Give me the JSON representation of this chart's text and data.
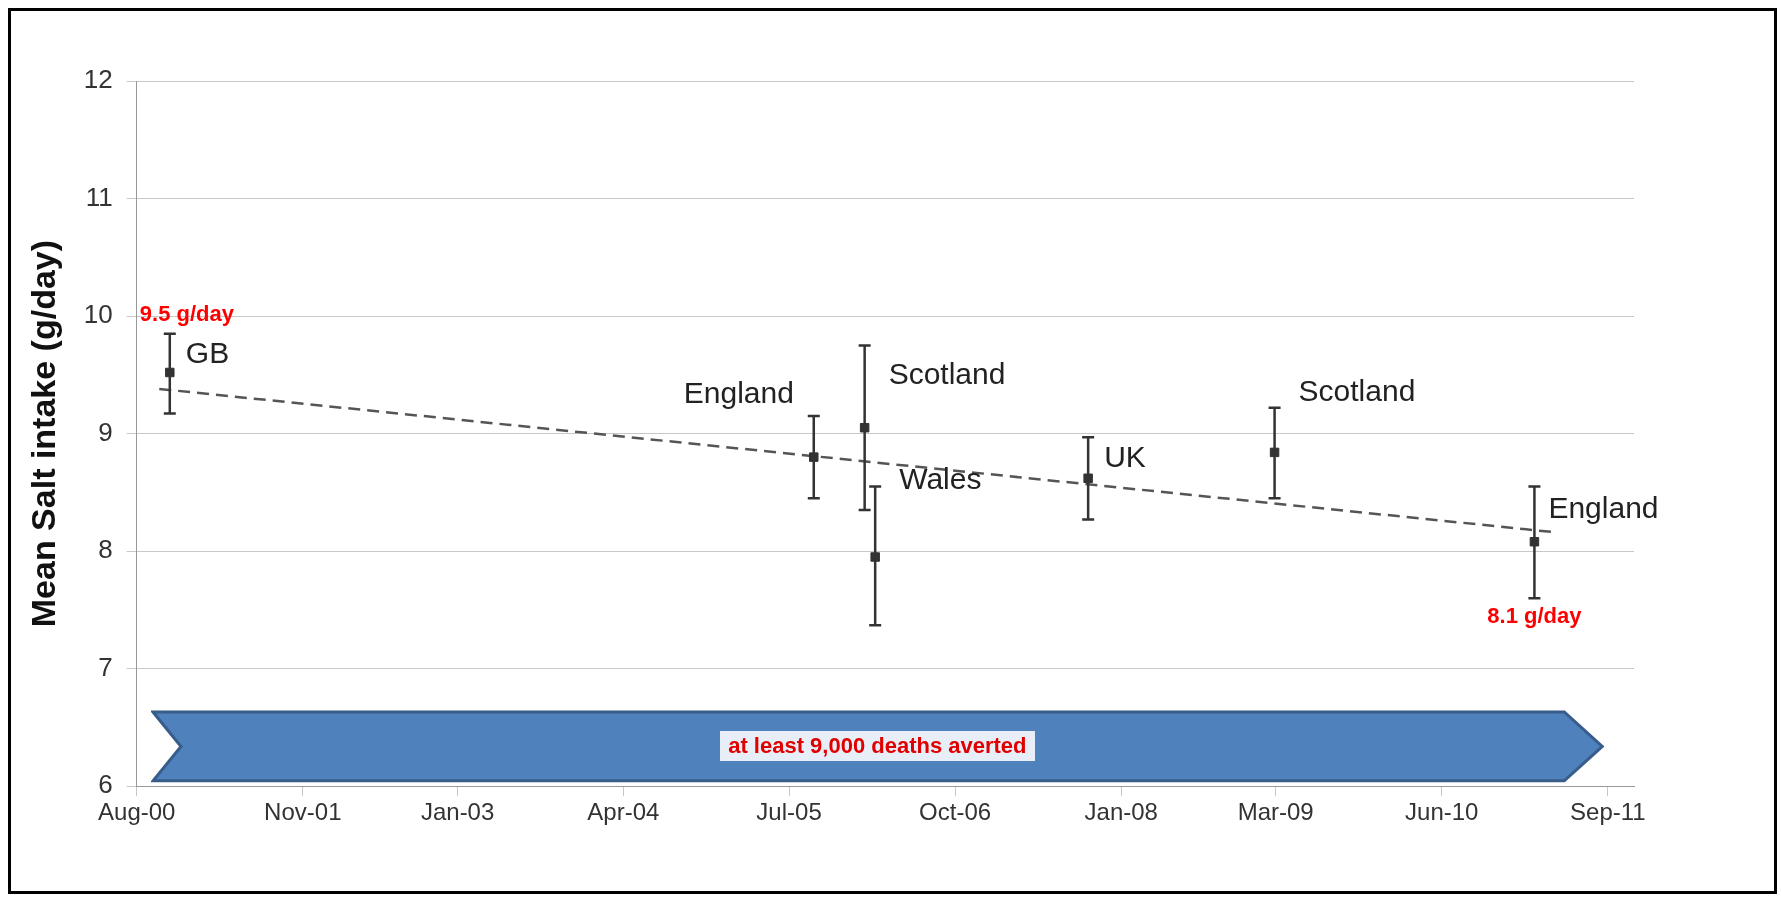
{
  "chart_data": {
    "type": "scatter",
    "ylabel": "Mean Salt intake (g/day)",
    "xlim": [
      "2000-08-01",
      "2011-11-12"
    ],
    "ylim": [
      6,
      12
    ],
    "xticks": [
      {
        "value": "2000-08-01",
        "label": "Aug-00"
      },
      {
        "value": "2001-11-01",
        "label": "Nov-01"
      },
      {
        "value": "2003-01-01",
        "label": "Jan-03"
      },
      {
        "value": "2004-04-01",
        "label": "Apr-04"
      },
      {
        "value": "2005-07-01",
        "label": "Jul-05"
      },
      {
        "value": "2006-10-01",
        "label": "Oct-06"
      },
      {
        "value": "2008-01-01",
        "label": "Jan-08"
      },
      {
        "value": "2009-03-01",
        "label": "Mar-09"
      },
      {
        "value": "2010-06-01",
        "label": "Jun-10"
      },
      {
        "value": "2011-09-01",
        "label": "Sep-11"
      }
    ],
    "yticks": [
      6,
      7,
      8,
      9,
      10,
      11,
      12
    ],
    "grid": "y",
    "legend": false,
    "series": [
      {
        "color": "#333333",
        "marker": "square",
        "x": [
          "2000-10-31",
          "2005-09-07",
          "2006-01-25",
          "2006-02-23",
          "2007-10-02",
          "2009-02-26",
          "2011-02-11"
        ],
        "values": [
          9.52,
          8.8,
          9.05,
          7.95,
          8.62,
          8.84,
          8.08
        ],
        "errors": [
          [
            9.17,
            9.85
          ],
          [
            8.45,
            9.15
          ],
          [
            8.35,
            9.75
          ],
          [
            7.37,
            8.55
          ],
          [
            8.27,
            8.97
          ],
          [
            8.45,
            9.22
          ],
          [
            7.6,
            8.55
          ]
        ],
        "value_labels": [
          "9.5 g/day",
          null,
          null,
          null,
          null,
          null,
          "8.1 g/day"
        ]
      },
      {
        "type": "line",
        "color": "#555555",
        "line_style": "dashed",
        "marker": "none",
        "x": [
          "2000-10-02",
          "2011-04-10"
        ],
        "values": [
          9.38,
          8.16
        ]
      }
    ],
    "annotations": [
      {
        "text": "GB",
        "x": "2000-10-31",
        "y": 9.52
      },
      {
        "text": "England",
        "x": "2005-09-07",
        "y": 8.8
      },
      {
        "text": "Scotland",
        "x": "2006-01-25",
        "y": 9.05
      },
      {
        "text": "Wales",
        "x": "2006-02-23",
        "y": 7.95
      },
      {
        "text": "UK",
        "x": "2007-10-02",
        "y": 8.62
      },
      {
        "text": "Scotland",
        "x": "2009-02-26",
        "y": 8.84
      },
      {
        "text": "England",
        "x": "2011-02-11",
        "y": 8.08
      },
      "at least 9,000 deaths averted"
    ]
  }
}
